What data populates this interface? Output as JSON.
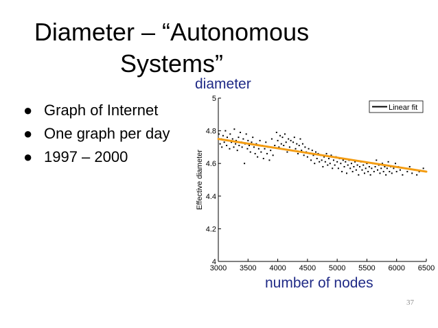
{
  "slide": {
    "title_line1": "Diameter – “Autonomous",
    "title_line2": "Systems”",
    "bullets": [
      "Graph of Internet",
      "One graph per day",
      "1997 – 2000"
    ],
    "label_diameter": "diameter",
    "label_nodes": "number of nodes",
    "page_number": "37"
  },
  "chart_data": {
    "type": "scatter",
    "title": "",
    "xlabel": "",
    "ylabel": "Effective diameter",
    "xlim": [
      3000,
      6500
    ],
    "ylim": [
      4,
      5
    ],
    "x_ticks": [
      3000,
      3500,
      4000,
      4500,
      5000,
      5500,
      6000,
      6500
    ],
    "y_ticks": [
      4,
      4.2,
      4.4,
      4.6,
      4.8,
      5
    ],
    "x_tick_labels": [
      "3000",
      "3500",
      "4000",
      "4500",
      "5000",
      "5500",
      "6000",
      "6500"
    ],
    "y_tick_labels": [
      "4",
      "4.2",
      "4.4",
      "4.6",
      "4.8",
      "5"
    ],
    "grid": false,
    "legend": {
      "position": "top-right",
      "entries": [
        "Linear fit"
      ]
    },
    "series": [
      {
        "kind": "points",
        "color": "#000000",
        "points": [
          [
            3010,
            4.78
          ],
          [
            3030,
            4.72
          ],
          [
            3050,
            4.75
          ],
          [
            3060,
            4.7
          ],
          [
            3080,
            4.77
          ],
          [
            3100,
            4.73
          ],
          [
            3120,
            4.8
          ],
          [
            3140,
            4.71
          ],
          [
            3150,
            4.76
          ],
          [
            3170,
            4.74
          ],
          [
            3190,
            4.69
          ],
          [
            3200,
            4.78
          ],
          [
            3220,
            4.73
          ],
          [
            3240,
            4.75
          ],
          [
            3260,
            4.7
          ],
          [
            3270,
            4.81
          ],
          [
            3290,
            4.72
          ],
          [
            3300,
            4.74
          ],
          [
            3320,
            4.68
          ],
          [
            3340,
            4.76
          ],
          [
            3350,
            4.71
          ],
          [
            3370,
            4.79
          ],
          [
            3390,
            4.73
          ],
          [
            3400,
            4.7
          ],
          [
            3420,
            4.75
          ],
          [
            3440,
            4.6
          ],
          [
            3450,
            4.72
          ],
          [
            3470,
            4.78
          ],
          [
            3490,
            4.69
          ],
          [
            3500,
            4.74
          ],
          [
            3520,
            4.71
          ],
          [
            3540,
            4.67
          ],
          [
            3560,
            4.73
          ],
          [
            3580,
            4.76
          ],
          [
            3600,
            4.7
          ],
          [
            3620,
            4.66
          ],
          [
            3640,
            4.72
          ],
          [
            3660,
            4.64
          ],
          [
            3680,
            4.69
          ],
          [
            3700,
            4.74
          ],
          [
            3720,
            4.67
          ],
          [
            3740,
            4.71
          ],
          [
            3760,
            4.63
          ],
          [
            3780,
            4.69
          ],
          [
            3800,
            4.73
          ],
          [
            3820,
            4.66
          ],
          [
            3840,
            4.7
          ],
          [
            3860,
            4.62
          ],
          [
            3880,
            4.68
          ],
          [
            3900,
            4.75
          ],
          [
            3920,
            4.65
          ],
          [
            3950,
            4.71
          ],
          [
            3980,
            4.79
          ],
          [
            4000,
            4.74
          ],
          [
            4020,
            4.7
          ],
          [
            4040,
            4.77
          ],
          [
            4060,
            4.72
          ],
          [
            4080,
            4.76
          ],
          [
            4100,
            4.71
          ],
          [
            4120,
            4.78
          ],
          [
            4140,
            4.73
          ],
          [
            4160,
            4.67
          ],
          [
            4180,
            4.75
          ],
          [
            4200,
            4.7
          ],
          [
            4220,
            4.74
          ],
          [
            4240,
            4.68
          ],
          [
            4260,
            4.73
          ],
          [
            4280,
            4.76
          ],
          [
            4300,
            4.69
          ],
          [
            4320,
            4.72
          ],
          [
            4340,
            4.66
          ],
          [
            4360,
            4.71
          ],
          [
            4380,
            4.75
          ],
          [
            4400,
            4.68
          ],
          [
            4420,
            4.72
          ],
          [
            4440,
            4.65
          ],
          [
            4460,
            4.7
          ],
          [
            4480,
            4.67
          ],
          [
            4500,
            4.64
          ],
          [
            4520,
            4.69
          ],
          [
            4540,
            4.66
          ],
          [
            4560,
            4.62
          ],
          [
            4580,
            4.68
          ],
          [
            4600,
            4.65
          ],
          [
            4620,
            4.6
          ],
          [
            4640,
            4.67
          ],
          [
            4660,
            4.63
          ],
          [
            4680,
            4.66
          ],
          [
            4700,
            4.61
          ],
          [
            4720,
            4.65
          ],
          [
            4740,
            4.62
          ],
          [
            4760,
            4.58
          ],
          [
            4780,
            4.64
          ],
          [
            4800,
            4.61
          ],
          [
            4820,
            4.66
          ],
          [
            4840,
            4.59
          ],
          [
            4860,
            4.63
          ],
          [
            4880,
            4.6
          ],
          [
            4900,
            4.65
          ],
          [
            4920,
            4.57
          ],
          [
            4940,
            4.62
          ],
          [
            4960,
            4.59
          ],
          [
            4980,
            4.64
          ],
          [
            5000,
            4.61
          ],
          [
            5020,
            4.57
          ],
          [
            5040,
            4.63
          ],
          [
            5060,
            4.6
          ],
          [
            5080,
            4.55
          ],
          [
            5100,
            4.62
          ],
          [
            5120,
            4.58
          ],
          [
            5140,
            4.61
          ],
          [
            5160,
            4.54
          ],
          [
            5180,
            4.59
          ],
          [
            5200,
            4.62
          ],
          [
            5220,
            4.57
          ],
          [
            5240,
            4.6
          ],
          [
            5260,
            4.55
          ],
          [
            5280,
            4.58
          ],
          [
            5300,
            4.61
          ],
          [
            5320,
            4.56
          ],
          [
            5340,
            4.59
          ],
          [
            5360,
            4.53
          ],
          [
            5380,
            4.58
          ],
          [
            5400,
            4.61
          ],
          [
            5420,
            4.56
          ],
          [
            5440,
            4.59
          ],
          [
            5460,
            4.54
          ],
          [
            5480,
            4.57
          ],
          [
            5500,
            4.6
          ],
          [
            5520,
            4.55
          ],
          [
            5540,
            4.58
          ],
          [
            5560,
            4.53
          ],
          [
            5580,
            4.57
          ],
          [
            5600,
            4.6
          ],
          [
            5620,
            4.55
          ],
          [
            5640,
            4.58
          ],
          [
            5660,
            4.62
          ],
          [
            5680,
            4.56
          ],
          [
            5700,
            4.59
          ],
          [
            5720,
            4.54
          ],
          [
            5740,
            4.57
          ],
          [
            5760,
            4.6
          ],
          [
            5780,
            4.55
          ],
          [
            5800,
            4.58
          ],
          [
            5820,
            4.53
          ],
          [
            5840,
            4.57
          ],
          [
            5860,
            4.61
          ],
          [
            5880,
            4.55
          ],
          [
            5900,
            4.58
          ],
          [
            5920,
            4.54
          ],
          [
            5950,
            4.57
          ],
          [
            5980,
            4.6
          ],
          [
            6000,
            4.55
          ],
          [
            6030,
            4.58
          ],
          [
            6060,
            4.56
          ],
          [
            6100,
            4.53
          ],
          [
            6140,
            4.57
          ],
          [
            6180,
            4.55
          ],
          [
            6220,
            4.58
          ],
          [
            6260,
            4.54
          ],
          [
            6300,
            4.56
          ],
          [
            6340,
            4.53
          ],
          [
            6380,
            4.55
          ],
          [
            6450,
            4.57
          ]
        ]
      },
      {
        "kind": "line",
        "name": "Linear fit",
        "color": "#f39c12",
        "points": [
          [
            3000,
            4.75
          ],
          [
            6500,
            4.55
          ]
        ]
      }
    ]
  }
}
